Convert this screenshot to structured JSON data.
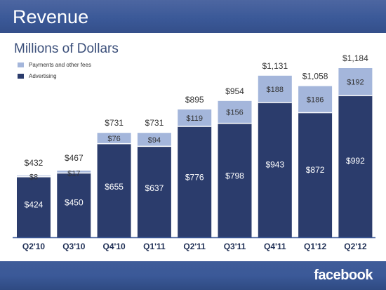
{
  "header": {
    "title": "Revenue"
  },
  "subtitle": "Millions of Dollars",
  "footer": {
    "logo": "facebook"
  },
  "colors": {
    "payments": "#a4b6db",
    "advertising": "#2b3c6c",
    "baseline": "#3b5998",
    "label_dark": "#333333",
    "label_light": "#ffffff",
    "tick": "#1f2f55"
  },
  "chart_data": {
    "type": "bar",
    "stacked": true,
    "title": "Revenue",
    "subtitle": "Millions of Dollars",
    "categories": [
      "Q2'10",
      "Q3'10",
      "Q4'10",
      "Q1'11",
      "Q2'11",
      "Q3'11",
      "Q4'11",
      "Q1'12",
      "Q2'12"
    ],
    "series": [
      {
        "name": "Advertising",
        "values": [
          424,
          450,
          655,
          637,
          776,
          798,
          943,
          872,
          992
        ]
      },
      {
        "name": "Payments and other fees",
        "values": [
          8,
          17,
          76,
          94,
          119,
          156,
          188,
          186,
          192
        ]
      }
    ],
    "value_labels": {
      "Advertising": [
        "$424",
        "$450",
        "$655",
        "$637",
        "$776",
        "$798",
        "$943",
        "$872",
        "$992"
      ],
      "Payments and other fees": [
        "$8",
        "$17",
        "$76",
        "$94",
        "$119",
        "$156",
        "$188",
        "$186",
        "$192"
      ]
    },
    "totals": [
      432,
      467,
      731,
      731,
      895,
      954,
      1131,
      1058,
      1184
    ],
    "total_labels": [
      "$432",
      "$467",
      "$731",
      "$731",
      "$895",
      "$954",
      "$1,131",
      "$1,058",
      "$1,184"
    ],
    "legend": [
      "Payments and other fees",
      "Advertising"
    ],
    "legend_position": "top-left",
    "ylim": [
      0,
      1184
    ],
    "grid": false
  }
}
